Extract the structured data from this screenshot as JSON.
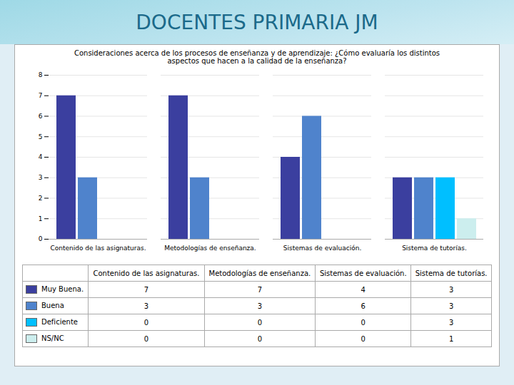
{
  "chart_data": {
    "type": "bar",
    "title": "DOCENTES PRIMARIA JM",
    "subtitle": "Consideraciones acerca de los procesos de enseñanza y de aprendizaje: ¿Cómo evaluaría los distintos\naspectos que hacen a la calidad de la enseñanza?",
    "categories": [
      "Contenido de las asignaturas.",
      "Metodologías de enseñanza.",
      "Sistemas de evaluación.",
      "Sistema de tutorías."
    ],
    "series": [
      {
        "name": "Muy Buena.",
        "color": "#3B3F9F",
        "values": [
          7,
          7,
          4,
          3
        ]
      },
      {
        "name": "Buena",
        "color": "#4F83CC",
        "values": [
          3,
          3,
          6,
          3
        ]
      },
      {
        "name": "Deficiente",
        "color": "#00BFFF",
        "values": [
          0,
          0,
          0,
          3
        ]
      },
      {
        "name": "NS/NC",
        "color": "#CCEEEE",
        "values": [
          0,
          0,
          0,
          1
        ]
      }
    ],
    "ylim": [
      0,
      8
    ],
    "yticks": [
      0,
      1,
      2,
      3,
      4,
      5,
      6,
      7,
      8
    ],
    "grid": true,
    "legend": "bottom"
  }
}
